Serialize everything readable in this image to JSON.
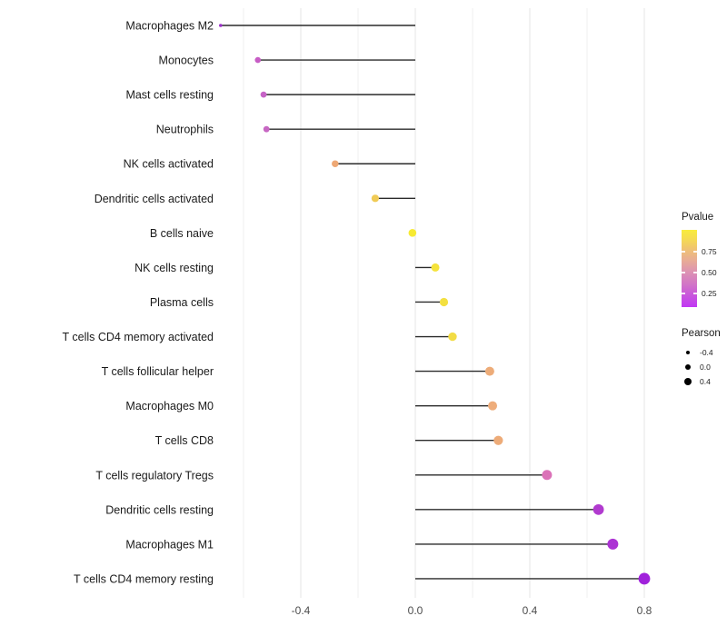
{
  "chart_data": {
    "type": "lollipop",
    "title": "",
    "xlabel": "",
    "ylabel": "",
    "orientation": "horizontal",
    "baseline": 0,
    "xlim": [
      -0.76,
      0.87
    ],
    "grid": "vertical-only",
    "x_ticks": [
      "-0.4",
      "0.0",
      "0.4",
      "0.8"
    ],
    "x_tick_values": [
      -0.4,
      0.0,
      0.4,
      0.8
    ],
    "x_minor_tick_values": [
      -0.6,
      -0.2,
      0.2,
      0.6
    ],
    "points": [
      {
        "label": "Macrophages M2",
        "pearson": -0.68,
        "color": "#9B2FC9",
        "radius": 1.8
      },
      {
        "label": "Monocytes",
        "pearson": -0.55,
        "color": "#C75DC5",
        "radius": 3.3
      },
      {
        "label": "Mast cells resting",
        "pearson": -0.53,
        "color": "#C663C6",
        "radius": 3.4
      },
      {
        "label": "Neutrophils",
        "pearson": -0.52,
        "color": "#C767C3",
        "radius": 3.4
      },
      {
        "label": "NK cells activated",
        "pearson": -0.28,
        "color": "#EEA875",
        "radius": 3.8
      },
      {
        "label": "Dendritic cells activated",
        "pearson": -0.14,
        "color": "#F0CB56",
        "radius": 4.1
      },
      {
        "label": "B cells naive",
        "pearson": -0.01,
        "color": "#F7EA32",
        "radius": 4.3
      },
      {
        "label": "NK cells resting",
        "pearson": 0.07,
        "color": "#F5E33C",
        "radius": 4.5
      },
      {
        "label": "Plasma cells",
        "pearson": 0.1,
        "color": "#F3E040",
        "radius": 4.6
      },
      {
        "label": "T cells CD4 memory activated",
        "pearson": 0.13,
        "color": "#F2DC45",
        "radius": 4.7
      },
      {
        "label": "T cells follicular helper",
        "pearson": 0.26,
        "color": "#EDAC79",
        "radius": 5.0
      },
      {
        "label": "Macrophages M0",
        "pearson": 0.27,
        "color": "#EEAD7B",
        "radius": 5.0
      },
      {
        "label": "T cells CD8",
        "pearson": 0.29,
        "color": "#EDAB78",
        "radius": 5.1
      },
      {
        "label": "T cells regulatory  Tregs",
        "pearson": 0.46,
        "color": "#DB72B8",
        "radius": 5.5
      },
      {
        "label": "Dendritic cells resting",
        "pearson": 0.64,
        "color": "#B13ACF",
        "radius": 5.9
      },
      {
        "label": "Macrophages M1",
        "pearson": 0.69,
        "color": "#AC33D4",
        "radius": 6.0
      },
      {
        "label": "T cells CD4 memory resting",
        "pearson": 0.8,
        "color": "#A021DB",
        "radius": 6.4
      }
    ],
    "legend_pvalue": {
      "title": "Pvalue",
      "position": "right",
      "ticks": [
        "0.75",
        "0.50",
        "0.25"
      ],
      "gradient_bottom_to_top": [
        {
          "pos": 0.0,
          "color": "#C137F5"
        },
        {
          "pos": 0.18,
          "color": "#CA5BD8"
        },
        {
          "pos": 0.3,
          "color": "#D276C6"
        },
        {
          "pos": 0.47,
          "color": "#DE95B0"
        },
        {
          "pos": 0.62,
          "color": "#E9AE92"
        },
        {
          "pos": 0.76,
          "color": "#F0C470"
        },
        {
          "pos": 0.88,
          "color": "#F5DB52"
        },
        {
          "pos": 1.0,
          "color": "#F8EC3D"
        }
      ]
    },
    "legend_pearson": {
      "title": "Pearson",
      "position": "right",
      "items": [
        {
          "label": "-0.4",
          "radius": 2.2
        },
        {
          "label": "0.0",
          "radius": 3.2
        },
        {
          "label": "0.4",
          "radius": 4.2
        }
      ]
    }
  },
  "colors": {
    "background": "#FFFFFF",
    "grid_major": "#E4E4E4",
    "grid_minor": "#EFEFEF",
    "stick": "#2B2B2B",
    "axis_tick_text": "#4D4D4D",
    "category_text": "#1A1A1A",
    "legend_dot": "#000000"
  }
}
